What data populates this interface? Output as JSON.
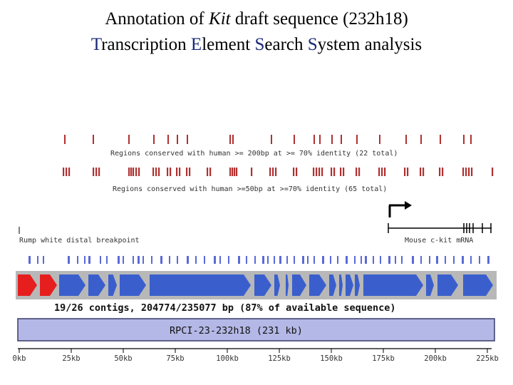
{
  "slide": {
    "title_line1": {
      "prefix": "Annotation of ",
      "italic": "Kit",
      "suffix": " draft sequence (232h18)"
    },
    "title_line2": {
      "w1_initial": "T",
      "w1_rest": "ranscription ",
      "w2_initial": "E",
      "w2_rest": "lement ",
      "w3_initial": "S",
      "w3_rest": "earch ",
      "w4_initial": "S",
      "w4_rest": "ystem analysis"
    },
    "accent_color": "#1a2a78"
  },
  "diagram": {
    "track1_label": "Regions conserved with human >= 200bp at >= 70% identity (22 total)",
    "track2_label": "Regions conserved with human >=50bp at >=70% identity (65 total)",
    "left_breakpoint_label": "Rump white distal breakpoint",
    "right_gene_label": "Mouse c-kit mRNA",
    "contigs_label": "19/26 contigs, 204774/235077 bp (87% of available sequence)",
    "bac_label": "RPCI-23-232h18 (231 kb)",
    "axis_ticks": [
      "0kb",
      "25kb",
      "50kb",
      "75kb",
      "100kb",
      "125kb",
      "150kb",
      "175kb",
      "200kb",
      "225kb"
    ],
    "colors": {
      "conserved_mark": "#b03030",
      "contig_blue": "#3a5fcd",
      "contig_red": "#e61e1e",
      "contig_band": "#b8b8b8",
      "bac_fill": "#b4b8e6",
      "small_marks": "#5a6ad8"
    }
  }
}
